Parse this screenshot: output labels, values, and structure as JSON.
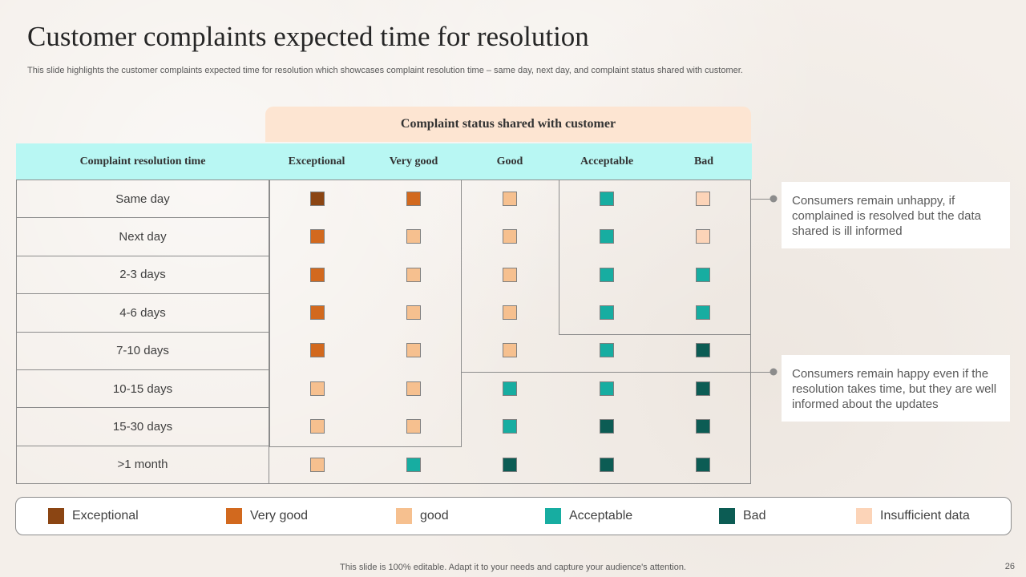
{
  "slide": {
    "title": "Customer complaints expected time for resolution",
    "subtitle": "This slide highlights the customer complaints expected time for resolution which showcases complaint resolution time – same day, next day,     and complaint status shared with customer.",
    "footer": "This slide is 100% editable. Adapt it to your needs and capture your audience's attention.",
    "page_number": "26"
  },
  "colors": {
    "exceptional": "#8b4513",
    "very_good": "#d2691e",
    "good": "#f6c08f",
    "acceptable": "#17ada1",
    "bad": "#0c5c54",
    "insufficient": "#fcd4b8"
  },
  "table": {
    "group_header": "Complaint status shared with customer",
    "row_header": "Complaint  resolution time",
    "columns": [
      "Exceptional",
      "Very good",
      "Good",
      "Acceptable",
      "Bad"
    ],
    "rows": [
      {
        "label": "Same day",
        "cells": [
          "exceptional",
          "very_good",
          "good",
          "acceptable",
          "insufficient"
        ]
      },
      {
        "label": "Next day",
        "cells": [
          "very_good",
          "good",
          "good",
          "acceptable",
          "insufficient"
        ]
      },
      {
        "label": "2-3 days",
        "cells": [
          "very_good",
          "good",
          "good",
          "acceptable",
          "acceptable"
        ]
      },
      {
        "label": "4-6 days",
        "cells": [
          "very_good",
          "good",
          "good",
          "acceptable",
          "acceptable"
        ]
      },
      {
        "label": "7-10 days",
        "cells": [
          "very_good",
          "good",
          "good",
          "acceptable",
          "bad"
        ]
      },
      {
        "label": "10-15 days",
        "cells": [
          "good",
          "good",
          "acceptable",
          "acceptable",
          "bad"
        ]
      },
      {
        "label": "15-30 days",
        "cells": [
          "good",
          "good",
          "acceptable",
          "bad",
          "bad"
        ]
      },
      {
        "label": ">1 month",
        "cells": [
          "good",
          "acceptable",
          "bad",
          "bad",
          "bad"
        ]
      }
    ]
  },
  "notes": {
    "unhappy": "Consumers remain unhappy,  if complained is resolved but the data shared is ill informed",
    "happy": "Consumers remain happy even if the resolution takes time, but they are well informed about the updates"
  },
  "legend": [
    {
      "key": "exceptional",
      "label": "Exceptional"
    },
    {
      "key": "very_good",
      "label": "Very good"
    },
    {
      "key": "good",
      "label": "good"
    },
    {
      "key": "acceptable",
      "label": "Acceptable"
    },
    {
      "key": "bad",
      "label": "Bad"
    },
    {
      "key": "insufficient",
      "label": "Insufficient  data"
    }
  ]
}
